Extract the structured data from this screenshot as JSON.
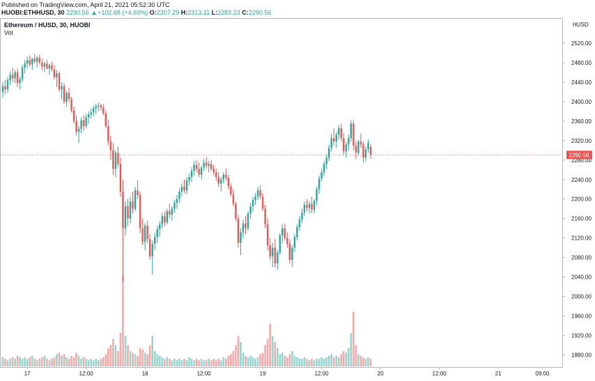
{
  "header": {
    "published": "Published on TradingView.com, April 21, 2021 05:52:30 UTC",
    "symbol": "HUOBI:ETHHUSD, 30",
    "last": "2290.56",
    "change": "+102.68 (+4.69%)",
    "open_label": "O:",
    "open": "2307.29",
    "high_label": "H:",
    "high": "2313.11",
    "low_label": "L:",
    "low": "2283.23",
    "close_label": "C:",
    "close": "2290.56"
  },
  "legend": {
    "title": "Ethereum / HUSD, 30, HUOBI",
    "volume_label": "Vol"
  },
  "colors": {
    "up": "#26a69a",
    "down": "#ef5350",
    "up_vol": "#95d5cf",
    "down_vol": "#f7a9a7",
    "price_line": "#ef5350"
  },
  "chart_data": {
    "type": "candlestick",
    "symbol": "ETHHUSD",
    "exchange": "HUOBI",
    "timeframe": "30",
    "axis_unit": "HUSD",
    "current_price": 2290.56,
    "current_price_label": "2290.56",
    "ylim": [
      1855,
      2570
    ],
    "yticks": [
      1880,
      1920,
      1960,
      2000,
      2040,
      2080,
      2120,
      2160,
      2200,
      2240,
      2280,
      2320,
      2360,
      2400,
      2440,
      2480,
      2520
    ],
    "ytick_labels": [
      "1880.00",
      "1920.00",
      "1960.00",
      "2000.00",
      "2040.00",
      "2080.00",
      "2120.00",
      "2160.00",
      "2200.00",
      "2240.00",
      "2280.00",
      "2320.00",
      "2360.00",
      "2400.00",
      "2440.00",
      "2480.00",
      "2520.00"
    ],
    "xticks": [
      {
        "label": "17",
        "index": 10
      },
      {
        "label": "12:00",
        "index": 34
      },
      {
        "label": "18",
        "index": 58
      },
      {
        "label": "12:00",
        "index": 82
      },
      {
        "label": "19",
        "index": 106
      },
      {
        "label": "12:00",
        "index": 130
      },
      {
        "label": "20",
        "index": 154
      },
      {
        "label": "12:00",
        "index": 178
      },
      {
        "label": "21",
        "index": 202
      },
      {
        "label": "09:00",
        "index": 220
      }
    ],
    "volume_note": "relative volume per candle",
    "candles": [
      [
        2420,
        2440,
        2408,
        2432,
        6
      ],
      [
        2432,
        2445,
        2415,
        2425,
        5
      ],
      [
        2425,
        2450,
        2418,
        2444,
        4
      ],
      [
        2444,
        2462,
        2435,
        2455,
        5
      ],
      [
        2455,
        2470,
        2440,
        2448,
        6
      ],
      [
        2448,
        2465,
        2438,
        2460,
        5
      ],
      [
        2460,
        2468,
        2430,
        2438,
        7
      ],
      [
        2438,
        2452,
        2425,
        2446,
        6
      ],
      [
        2446,
        2475,
        2440,
        2470,
        5
      ],
      [
        2470,
        2485,
        2458,
        2478,
        6
      ],
      [
        2478,
        2492,
        2468,
        2485,
        5
      ],
      [
        2485,
        2495,
        2472,
        2476,
        6
      ],
      [
        2476,
        2490,
        2465,
        2488,
        7
      ],
      [
        2488,
        2498,
        2478,
        2482,
        5
      ],
      [
        2482,
        2494,
        2470,
        2490,
        4
      ],
      [
        2490,
        2496,
        2476,
        2480,
        5
      ],
      [
        2480,
        2488,
        2465,
        2472,
        6
      ],
      [
        2472,
        2482,
        2460,
        2478,
        7
      ],
      [
        2478,
        2486,
        2466,
        2468,
        5
      ],
      [
        2468,
        2478,
        2455,
        2475,
        4
      ],
      [
        2475,
        2482,
        2462,
        2466,
        5
      ],
      [
        2466,
        2475,
        2445,
        2450,
        6
      ],
      [
        2450,
        2465,
        2430,
        2458,
        8
      ],
      [
        2458,
        2462,
        2420,
        2425,
        9
      ],
      [
        2425,
        2440,
        2405,
        2432,
        7
      ],
      [
        2432,
        2438,
        2395,
        2400,
        8
      ],
      [
        2400,
        2422,
        2390,
        2418,
        6
      ],
      [
        2418,
        2428,
        2398,
        2405,
        5
      ],
      [
        2405,
        2410,
        2378,
        2382,
        7
      ],
      [
        2382,
        2390,
        2355,
        2360,
        6
      ],
      [
        2360,
        2372,
        2330,
        2338,
        9
      ],
      [
        2338,
        2350,
        2315,
        2344,
        7
      ],
      [
        2344,
        2368,
        2335,
        2362,
        5
      ],
      [
        2362,
        2372,
        2340,
        2350,
        6
      ],
      [
        2350,
        2375,
        2345,
        2368,
        5
      ],
      [
        2368,
        2380,
        2355,
        2374,
        4
      ],
      [
        2374,
        2386,
        2365,
        2378,
        5
      ],
      [
        2378,
        2392,
        2370,
        2386,
        4
      ],
      [
        2386,
        2396,
        2375,
        2390,
        5
      ],
      [
        2390,
        2398,
        2380,
        2392,
        4
      ],
      [
        2392,
        2396,
        2382,
        2388,
        5
      ],
      [
        2388,
        2394,
        2372,
        2376,
        6
      ],
      [
        2376,
        2382,
        2345,
        2350,
        8
      ],
      [
        2350,
        2362,
        2310,
        2318,
        12
      ],
      [
        2318,
        2330,
        2280,
        2300,
        14
      ],
      [
        2300,
        2315,
        2250,
        2262,
        18
      ],
      [
        2262,
        2300,
        2245,
        2295,
        14
      ],
      [
        2295,
        2308,
        2265,
        2272,
        10
      ],
      [
        2272,
        2285,
        2205,
        2215,
        22
      ],
      [
        2215,
        2240,
        2030,
        2140,
        60
      ],
      [
        2140,
        2195,
        2125,
        2185,
        20
      ],
      [
        2185,
        2200,
        2145,
        2160,
        14
      ],
      [
        2160,
        2205,
        2150,
        2195,
        10
      ],
      [
        2195,
        2215,
        2170,
        2180,
        9
      ],
      [
        2180,
        2225,
        2175,
        2218,
        8
      ],
      [
        2218,
        2238,
        2200,
        2208,
        7
      ],
      [
        2208,
        2215,
        2130,
        2140,
        12
      ],
      [
        2140,
        2160,
        2105,
        2112,
        11
      ],
      [
        2112,
        2150,
        2095,
        2145,
        9
      ],
      [
        2145,
        2155,
        2110,
        2118,
        8
      ],
      [
        2118,
        2128,
        2075,
        2082,
        14
      ],
      [
        2082,
        2115,
        2045,
        2108,
        20
      ],
      [
        2108,
        2130,
        2095,
        2122,
        10
      ],
      [
        2122,
        2145,
        2110,
        2138,
        8
      ],
      [
        2138,
        2155,
        2122,
        2148,
        7
      ],
      [
        2148,
        2172,
        2140,
        2165,
        6
      ],
      [
        2165,
        2175,
        2145,
        2152,
        5
      ],
      [
        2152,
        2180,
        2148,
        2175,
        6
      ],
      [
        2175,
        2190,
        2160,
        2168,
        5
      ],
      [
        2168,
        2185,
        2155,
        2180,
        4
      ],
      [
        2180,
        2198,
        2172,
        2192,
        5
      ],
      [
        2192,
        2208,
        2180,
        2200,
        4
      ],
      [
        2200,
        2222,
        2192,
        2215,
        5
      ],
      [
        2215,
        2232,
        2205,
        2225,
        4
      ],
      [
        2225,
        2240,
        2212,
        2218,
        5
      ],
      [
        2218,
        2245,
        2210,
        2238,
        4
      ],
      [
        2238,
        2252,
        2228,
        2245,
        6
      ],
      [
        2245,
        2265,
        2235,
        2258,
        5
      ],
      [
        2258,
        2278,
        2248,
        2270,
        4
      ],
      [
        2270,
        2280,
        2255,
        2262,
        5
      ],
      [
        2262,
        2275,
        2245,
        2250,
        4
      ],
      [
        2250,
        2268,
        2240,
        2265,
        5
      ],
      [
        2265,
        2282,
        2258,
        2275,
        4
      ],
      [
        2275,
        2286,
        2262,
        2268,
        4
      ],
      [
        2268,
        2278,
        2255,
        2272,
        5
      ],
      [
        2272,
        2280,
        2258,
        2262,
        4
      ],
      [
        2262,
        2270,
        2248,
        2255,
        5
      ],
      [
        2255,
        2262,
        2238,
        2245,
        4
      ],
      [
        2245,
        2255,
        2225,
        2232,
        5
      ],
      [
        2232,
        2245,
        2215,
        2240,
        4
      ],
      [
        2240,
        2255,
        2232,
        2250,
        6
      ],
      [
        2250,
        2262,
        2238,
        2244,
        5
      ],
      [
        2244,
        2250,
        2220,
        2226,
        7
      ],
      [
        2226,
        2232,
        2205,
        2210,
        8
      ],
      [
        2210,
        2220,
        2185,
        2190,
        10
      ],
      [
        2190,
        2195,
        2155,
        2160,
        14
      ],
      [
        2160,
        2168,
        2100,
        2110,
        20
      ],
      [
        2110,
        2140,
        2085,
        2132,
        16
      ],
      [
        2132,
        2158,
        2120,
        2150,
        9
      ],
      [
        2150,
        2165,
        2128,
        2140,
        7
      ],
      [
        2140,
        2175,
        2135,
        2170,
        6
      ],
      [
        2170,
        2192,
        2160,
        2185,
        7
      ],
      [
        2185,
        2205,
        2175,
        2198,
        6
      ],
      [
        2198,
        2212,
        2188,
        2205,
        5
      ],
      [
        2205,
        2225,
        2198,
        2218,
        6
      ],
      [
        2218,
        2228,
        2200,
        2205,
        8
      ],
      [
        2205,
        2212,
        2175,
        2180,
        9
      ],
      [
        2180,
        2188,
        2140,
        2148,
        14
      ],
      [
        2148,
        2160,
        2095,
        2105,
        18
      ],
      [
        2105,
        2120,
        2075,
        2082,
        28
      ],
      [
        2082,
        2110,
        2060,
        2100,
        20
      ],
      [
        2100,
        2118,
        2060,
        2068,
        16
      ],
      [
        2068,
        2095,
        2055,
        2090,
        12
      ],
      [
        2090,
        2130,
        2085,
        2125,
        8
      ],
      [
        2125,
        2148,
        2110,
        2140,
        9
      ],
      [
        2140,
        2150,
        2115,
        2120,
        7
      ],
      [
        2120,
        2132,
        2100,
        2108,
        6
      ],
      [
        2108,
        2118,
        2068,
        2075,
        8
      ],
      [
        2075,
        2105,
        2060,
        2100,
        10
      ],
      [
        2100,
        2128,
        2092,
        2122,
        7
      ],
      [
        2122,
        2148,
        2115,
        2142,
        6
      ],
      [
        2142,
        2165,
        2135,
        2158,
        5
      ],
      [
        2158,
        2180,
        2150,
        2172,
        5
      ],
      [
        2172,
        2195,
        2165,
        2188,
        6
      ],
      [
        2188,
        2200,
        2175,
        2182,
        5
      ],
      [
        2182,
        2195,
        2170,
        2190,
        4
      ],
      [
        2190,
        2205,
        2172,
        2178,
        5
      ],
      [
        2178,
        2200,
        2170,
        2196,
        4
      ],
      [
        2196,
        2225,
        2188,
        2220,
        5
      ],
      [
        2220,
        2248,
        2210,
        2242,
        5
      ],
      [
        2242,
        2262,
        2235,
        2255,
        6
      ],
      [
        2255,
        2278,
        2248,
        2272,
        5
      ],
      [
        2272,
        2292,
        2262,
        2285,
        6
      ],
      [
        2285,
        2312,
        2278,
        2305,
        7
      ],
      [
        2305,
        2335,
        2298,
        2325,
        8
      ],
      [
        2325,
        2345,
        2310,
        2318,
        6
      ],
      [
        2318,
        2338,
        2305,
        2332,
        7
      ],
      [
        2332,
        2352,
        2322,
        2345,
        6
      ],
      [
        2345,
        2355,
        2318,
        2325,
        8
      ],
      [
        2325,
        2335,
        2290,
        2298,
        10
      ],
      [
        2298,
        2318,
        2285,
        2312,
        9
      ],
      [
        2312,
        2332,
        2300,
        2325,
        12
      ],
      [
        2325,
        2362,
        2318,
        2355,
        22
      ],
      [
        2355,
        2362,
        2300,
        2310,
        36
      ],
      [
        2310,
        2318,
        2282,
        2295,
        14
      ],
      [
        2295,
        2322,
        2288,
        2318,
        8
      ],
      [
        2318,
        2335,
        2305,
        2312,
        7
      ],
      [
        2312,
        2318,
        2275,
        2285,
        6
      ],
      [
        2285,
        2308,
        2278,
        2302,
        5
      ],
      [
        2302,
        2322,
        2295,
        2315,
        6
      ],
      [
        2307,
        2313,
        2283,
        2291,
        5
      ]
    ]
  }
}
